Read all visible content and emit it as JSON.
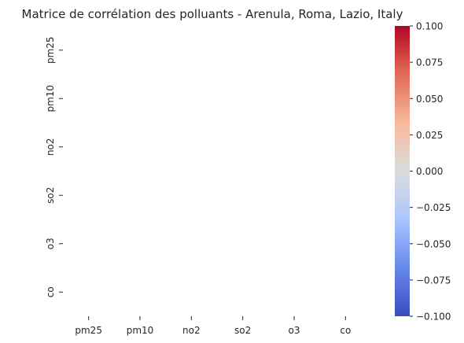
{
  "chart_data": {
    "type": "heatmap",
    "title": "Matrice de corrélation des polluants - Arenula, Roma, Lazio, Italy",
    "x_categories": [
      "pm25",
      "pm10",
      "no2",
      "so2",
      "o3",
      "co"
    ],
    "y_categories": [
      "pm25",
      "pm10",
      "no2",
      "so2",
      "o3",
      "co"
    ],
    "values": [
      [
        null,
        null,
        null,
        null,
        null,
        null
      ],
      [
        null,
        null,
        null,
        null,
        null,
        null
      ],
      [
        null,
        null,
        null,
        null,
        null,
        null
      ],
      [
        null,
        null,
        null,
        null,
        null,
        null
      ],
      [
        null,
        null,
        null,
        null,
        null,
        null
      ],
      [
        null,
        null,
        null,
        null,
        null,
        null
      ]
    ],
    "colormap": "coolwarm",
    "colorbar": {
      "range": [
        -0.1,
        0.1
      ],
      "ticks": [
        "0.100",
        "0.075",
        "0.050",
        "0.025",
        "0.000",
        "−0.025",
        "−0.050",
        "−0.075",
        "−0.100"
      ],
      "colors": [
        "#b40426",
        "#e36c55",
        "#f7b89c",
        "#dddcdc",
        "#aac7fd",
        "#6788ee",
        "#3b4cc0"
      ]
    },
    "legend_placement": "right",
    "grid": false
  }
}
